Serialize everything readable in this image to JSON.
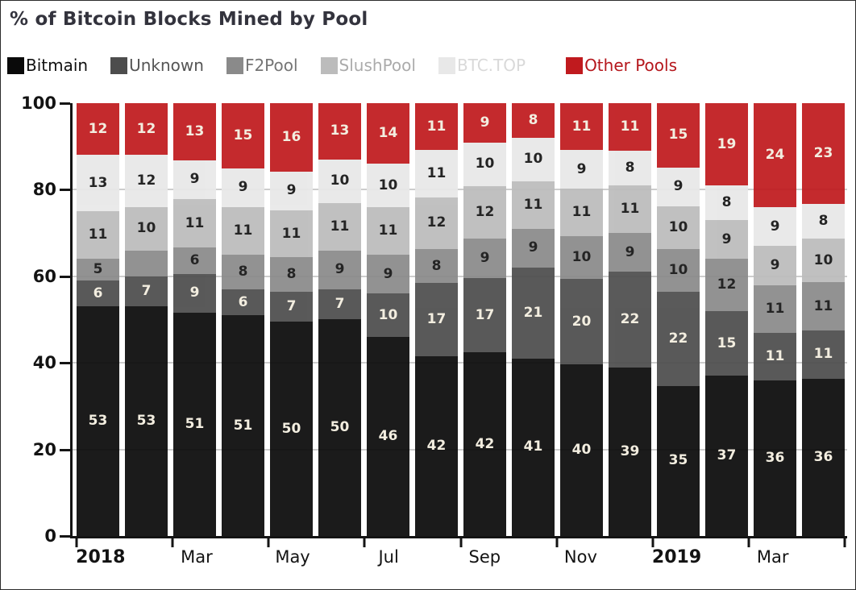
{
  "page": {
    "title": "% of Bitcoin Blocks Mined by Pool"
  },
  "legend": {
    "items": [
      {
        "id": "bitmain",
        "label": "Bitmain",
        "swatch_color": "#0a0a0a",
        "label_color": "#111111"
      },
      {
        "id": "unknown",
        "label": "Unknown",
        "swatch_color": "#4d4d4d",
        "label_color": "#555555"
      },
      {
        "id": "f2pool",
        "label": "F2Pool",
        "swatch_color": "#8a8a8a",
        "label_color": "#757575"
      },
      {
        "id": "slushpool",
        "label": "SlushPool",
        "swatch_color": "#bcbcbc",
        "label_color": "#ababab"
      },
      {
        "id": "btctop",
        "label": "BTC.TOP",
        "swatch_color": "#e8e8e8",
        "label_color": "#d9d9d9"
      },
      {
        "id": "other-pools",
        "label": "Other Pools",
        "swatch_color": "#c01a1e",
        "label_color": "#b5171c",
        "extra_left_gap": true
      }
    ]
  },
  "chart_data": {
    "type": "bar",
    "stacked": true,
    "title": "% of Bitcoin Blocks Mined by Pool",
    "bar_count": 16,
    "y_axis": {
      "range": [
        0,
        100
      ],
      "ticks": [
        0,
        20,
        40,
        60,
        80,
        100
      ],
      "grid_values": [
        20,
        40,
        60,
        80
      ],
      "grid_color": "#cdcdcd"
    },
    "x_axis": {
      "tick_boundaries_every_n_bars": 2,
      "labels": [
        {
          "label": "2018",
          "bold": true,
          "bar_index": 0
        },
        {
          "label": "Mar",
          "bold": false,
          "bar_index": 2
        },
        {
          "label": "May",
          "bold": false,
          "bar_index": 4
        },
        {
          "label": "Jul",
          "bold": false,
          "bar_index": 6
        },
        {
          "label": "Sep",
          "bold": false,
          "bar_index": 8
        },
        {
          "label": "Nov",
          "bold": false,
          "bar_index": 10
        },
        {
          "label": "2019",
          "bold": true,
          "bar_index": 12
        },
        {
          "label": "Mar",
          "bold": false,
          "bar_index": 14
        }
      ]
    },
    "series": [
      {
        "name": "Bitmain",
        "color": "#0a0a0a",
        "label_style": "light",
        "values": [
          53,
          53,
          51,
          51,
          50,
          50,
          46,
          42,
          42,
          41,
          40,
          39,
          35,
          37,
          36,
          36
        ]
      },
      {
        "name": "Unknown",
        "color": "#4d4d4d",
        "label_style": "light",
        "values": [
          6,
          7,
          9,
          6,
          7,
          7,
          10,
          17,
          17,
          21,
          20,
          22,
          22,
          15,
          11,
          11
        ]
      },
      {
        "name": "F2Pool",
        "color": "#8a8a8a",
        "label_style": "dark",
        "values": [
          5,
          6,
          6,
          8,
          8,
          9,
          9,
          8,
          9,
          9,
          10,
          9,
          10,
          12,
          11,
          11
        ],
        "hidden_value_labels": [
          1
        ]
      },
      {
        "name": "SlushPool",
        "color": "#bcbcbc",
        "label_style": "dark",
        "values": [
          11,
          10,
          11,
          11,
          11,
          11,
          11,
          12,
          12,
          11,
          11,
          11,
          10,
          9,
          9,
          10
        ]
      },
      {
        "name": "BTC.TOP",
        "color": "#e8e8e8",
        "label_style": "dark",
        "values": [
          13,
          12,
          9,
          9,
          9,
          10,
          10,
          11,
          10,
          10,
          9,
          8,
          9,
          8,
          9,
          8
        ]
      },
      {
        "name": "Other Pools",
        "color": "#c01a1e",
        "label_style": "light",
        "values": [
          12,
          12,
          13,
          15,
          16,
          13,
          14,
          11,
          9,
          8,
          11,
          11,
          15,
          19,
          24,
          23
        ]
      }
    ],
    "label_colors": {
      "light": "#f3edde",
      "dark": "#141414"
    }
  }
}
